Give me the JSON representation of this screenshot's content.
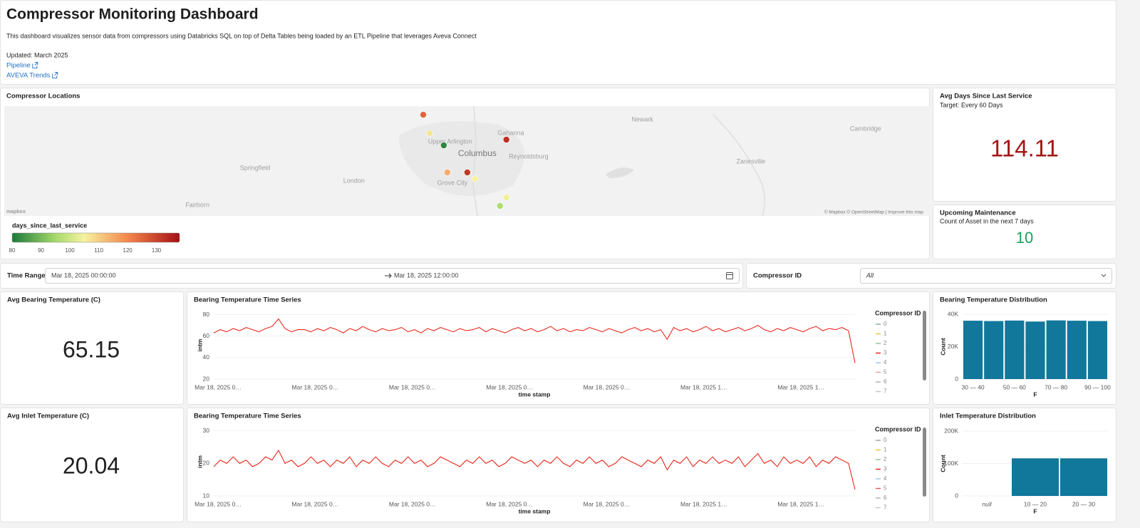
{
  "header": {
    "title": "Compressor Monitoring Dashboard",
    "description": "This dashboard visualizes sensor data from compressors using Databricks SQL on top of Delta Tables being loaded by an ETL Pipeline that leverages Aveva Connect",
    "updated": "Updated: March 2025",
    "links": [
      "Pipeline",
      "AVEVA Trends"
    ]
  },
  "map": {
    "title": "Compressor Locations",
    "lon_range": [
      -84.7,
      -81.36
    ],
    "lat_range": [
      39.786,
      40.094
    ],
    "labels": [
      {
        "name": "Upper Arlington",
        "lon": -83.091,
        "lat": 39.994
      },
      {
        "name": "Columbus",
        "lon": -82.993,
        "lat": 39.96
      },
      {
        "name": "Gahanna",
        "lon": -82.872,
        "lat": 40.018
      },
      {
        "name": "Reynoldsburg",
        "lon": -82.808,
        "lat": 39.952
      },
      {
        "name": "Newark",
        "lon": -82.397,
        "lat": 40.056
      },
      {
        "name": "Cambridge",
        "lon": -81.592,
        "lat": 40.03
      },
      {
        "name": "Zanesville",
        "lon": -82.006,
        "lat": 39.938
      },
      {
        "name": "Springfield",
        "lon": -83.795,
        "lat": 39.92
      },
      {
        "name": "London",
        "lon": -83.438,
        "lat": 39.884
      },
      {
        "name": "Grove City",
        "lon": -83.083,
        "lat": 39.878
      },
      {
        "name": "Fairborn",
        "lon": -84.003,
        "lat": 39.816
      }
    ],
    "points": [
      {
        "lon": -83.188,
        "lat": 40.07,
        "value": 125
      },
      {
        "lon": -83.165,
        "lat": 40.018,
        "value": 107
      },
      {
        "lon": -83.114,
        "lat": 39.984,
        "value": 82
      },
      {
        "lon": -82.888,
        "lat": 40.0,
        "value": 133
      },
      {
        "lon": -83.101,
        "lat": 39.908,
        "value": 115
      },
      {
        "lon": -83.029,
        "lat": 39.908,
        "value": 132
      },
      {
        "lon": -83.001,
        "lat": 39.89,
        "value": 105
      },
      {
        "lon": -82.888,
        "lat": 39.838,
        "value": 104
      },
      {
        "lon": -82.911,
        "lat": 39.814,
        "value": 96
      }
    ],
    "logo": "mapbox",
    "attribution": "© Mapbox © OpenStreetMap | Improve this map",
    "legend": {
      "title": "days_since_last_service",
      "range": [
        80,
        138
      ],
      "ticks": [
        80,
        90,
        100,
        110,
        120,
        130
      ],
      "stops": [
        {
          "value": 80,
          "color": "#1a7a3a"
        },
        {
          "value": 95,
          "color": "#a6d96a"
        },
        {
          "value": 105,
          "color": "#f6f2a0"
        },
        {
          "value": 120,
          "color": "#f4874b"
        },
        {
          "value": 138,
          "color": "#a50f15"
        }
      ]
    }
  },
  "service_kpi": {
    "title": "Avg Days Since Last Service",
    "subtitle": "Target: Every 60 Days",
    "value": 114.11,
    "color": "#a31515"
  },
  "maintenance_kpi": {
    "title": "Upcoming Maintenance",
    "subtitle": "Count of Asset in the next 7 days",
    "value": 10,
    "color": "#14a35a"
  },
  "filters": {
    "time_range": {
      "label": "Time Range",
      "start": "Mar 18, 2025 00:00:00",
      "end": "Mar 18, 2025 12:00:00"
    },
    "compressor": {
      "label": "Compressor ID",
      "value": "All"
    }
  },
  "bearing_kpi": {
    "title": "Avg Bearing Temperature (C)",
    "value": 65.15
  },
  "inlet_kpi": {
    "title": "Avg Inlet Temperature (C)",
    "value": 20.04
  },
  "chart_data": [
    {
      "type": "line",
      "title": "Bearing Temperature Time Series",
      "x_label": "time stamp",
      "y_label": "intm",
      "ylim": [
        20,
        83
      ],
      "yticks": [
        20,
        40,
        60,
        80
      ],
      "x_tick_labels": [
        "Mar 18, 2025 0…",
        "Mar 18, 2025 0…",
        "Mar 18, 2025 0…",
        "Mar 18, 2025 0…",
        "Mar 18, 2025 0…",
        "Mar 18, 2025 1…",
        "Mar 18, 2025 1…"
      ],
      "color": "#e8291c",
      "values": [
        63,
        66,
        64,
        67,
        65,
        68,
        66,
        64,
        67,
        69,
        76,
        67,
        64,
        66,
        66,
        64,
        67,
        65,
        68,
        66,
        63,
        67,
        65,
        69,
        66,
        64,
        67,
        65,
        66,
        68,
        64,
        66,
        63,
        67,
        65,
        68,
        66,
        64,
        67,
        65,
        66,
        68,
        64,
        67,
        65,
        63,
        66,
        68,
        65,
        67,
        64,
        66,
        69,
        65,
        67,
        64,
        66,
        65,
        68,
        66,
        64,
        67,
        65,
        63,
        66,
        68,
        65,
        67,
        64,
        66,
        57,
        68,
        65,
        67,
        64,
        66,
        69,
        65,
        67,
        64,
        66,
        68,
        65,
        67,
        70,
        66,
        64,
        67,
        65,
        68,
        66,
        64,
        67,
        69,
        65,
        67,
        66,
        68,
        65,
        35
      ],
      "legend": {
        "title": "Compressor ID",
        "items": [
          {
            "name": "0",
            "color": "#9aa7ad"
          },
          {
            "name": "1",
            "color": "#f5c342"
          },
          {
            "name": "2",
            "color": "#8fc9a0"
          },
          {
            "name": "3",
            "color": "#e8291c"
          },
          {
            "name": "4",
            "color": "#9ec9e8"
          },
          {
            "name": "5",
            "color": "#e8a0a0"
          },
          {
            "name": "6",
            "color": "#b0b0b0"
          },
          {
            "name": "7",
            "color": "#c8c8c8"
          }
        ]
      }
    },
    {
      "type": "bar",
      "title": "Bearing Temperature Distribution",
      "x_label": "F",
      "y_label": "Count",
      "ylim": [
        0,
        40000
      ],
      "yticks": [
        0,
        {
          "value": 20000,
          "label": "20K"
        },
        {
          "value": 40000,
          "label": "40K"
        }
      ],
      "categories": [
        "30 — 40",
        null,
        "50 — 60",
        null,
        "70 — 80",
        null,
        "90 — 100"
      ],
      "values": [
        36000,
        35800,
        36100,
        35500,
        36200,
        36000,
        35800
      ],
      "color": "#11779b"
    },
    {
      "type": "line",
      "title": "Bearing Temperature Time Series",
      "x_label": "time stamp",
      "y_label": "intm",
      "ylim": [
        10,
        31
      ],
      "yticks": [
        10,
        20,
        30
      ],
      "x_tick_labels": [
        "Mar 18, 2025 0…",
        "Mar 18, 2025 0…",
        "Mar 18, 2025 0…",
        "Mar 18, 2025 0…",
        "Mar 18, 2025 0…",
        "Mar 18, 2025 1…",
        "Mar 18, 2025 1…"
      ],
      "color": "#e8291c",
      "values": [
        19,
        21,
        20,
        22,
        20,
        21,
        19,
        20,
        22,
        21,
        24,
        20,
        21,
        19,
        20,
        22,
        20,
        21,
        19,
        21,
        20,
        22,
        19,
        21,
        20,
        22,
        20,
        19,
        21,
        20,
        22,
        20,
        21,
        19,
        20,
        22,
        21,
        20,
        19,
        21,
        20,
        22,
        20,
        21,
        19,
        20,
        22,
        21,
        20,
        21,
        19,
        21,
        20,
        22,
        20,
        19,
        21,
        20,
        22,
        20,
        21,
        19,
        20,
        22,
        21,
        20,
        19,
        21,
        20,
        22,
        18,
        21,
        20,
        22,
        19,
        21,
        20,
        22,
        20,
        21,
        20,
        22,
        19,
        21,
        23,
        20,
        21,
        19,
        22,
        20,
        21,
        20,
        22,
        19,
        21,
        20,
        22,
        21,
        20,
        12
      ],
      "legend": {
        "title": "Compressor ID",
        "items": [
          {
            "name": "0",
            "color": "#9aa7ad"
          },
          {
            "name": "1",
            "color": "#f5c342"
          },
          {
            "name": "2",
            "color": "#8fc9a0"
          },
          {
            "name": "3",
            "color": "#e8291c"
          },
          {
            "name": "4",
            "color": "#9ec9e8"
          },
          {
            "name": "5",
            "color": "#e85a5a"
          },
          {
            "name": "6",
            "color": "#b0b0b0"
          },
          {
            "name": "7",
            "color": "#c8c8c8"
          }
        ]
      }
    },
    {
      "type": "bar",
      "title": "Inlet Temperature Distribution",
      "x_label": "F",
      "y_label": "Count",
      "ylim": [
        0,
        200000
      ],
      "yticks": [
        0,
        {
          "value": 100000,
          "label": "100K"
        },
        {
          "value": 200000,
          "label": "200K"
        }
      ],
      "categories": [
        "null",
        "10 — 20",
        "20 — 30"
      ],
      "values": [
        0,
        116000,
        116000
      ],
      "color": "#11779b"
    }
  ]
}
